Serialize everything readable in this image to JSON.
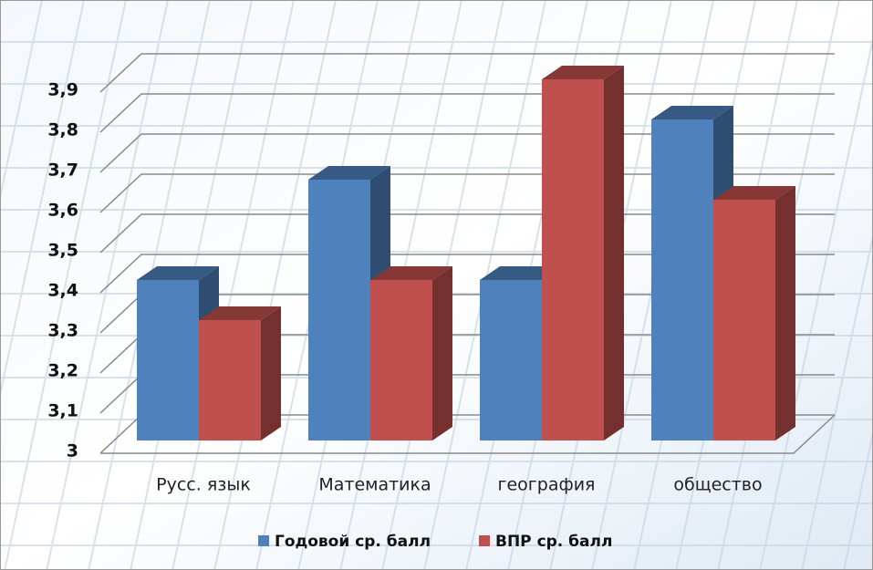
{
  "chart_data": {
    "type": "bar",
    "categories": [
      "Русс.  язык",
      "Математика",
      "география",
      "общество"
    ],
    "series": [
      {
        "name": "Годовой ср. балл",
        "color": "#4f81bd",
        "values": [
          3.4,
          3.65,
          3.4,
          3.8
        ]
      },
      {
        "name": "ВПР  ср. балл",
        "color": "#c0504d",
        "values": [
          3.3,
          3.4,
          3.9,
          3.6
        ]
      }
    ],
    "ylim": [
      3,
      4
    ],
    "yticks": [
      3,
      {
        "value": 3.1,
        "label": "3,1"
      },
      {
        "value": 3.2,
        "label": "3,2"
      },
      {
        "value": 3.3,
        "label": "3,3"
      },
      {
        "value": 3.4,
        "label": "3,4"
      },
      {
        "value": 3.5,
        "label": "3,5"
      },
      {
        "value": 3.6,
        "label": "3,6"
      },
      {
        "value": 3.7,
        "label": "3,7"
      },
      {
        "value": 3.8,
        "label": "3,8"
      },
      {
        "value": 3.9,
        "label": "3,9"
      }
    ],
    "grid": true
  }
}
